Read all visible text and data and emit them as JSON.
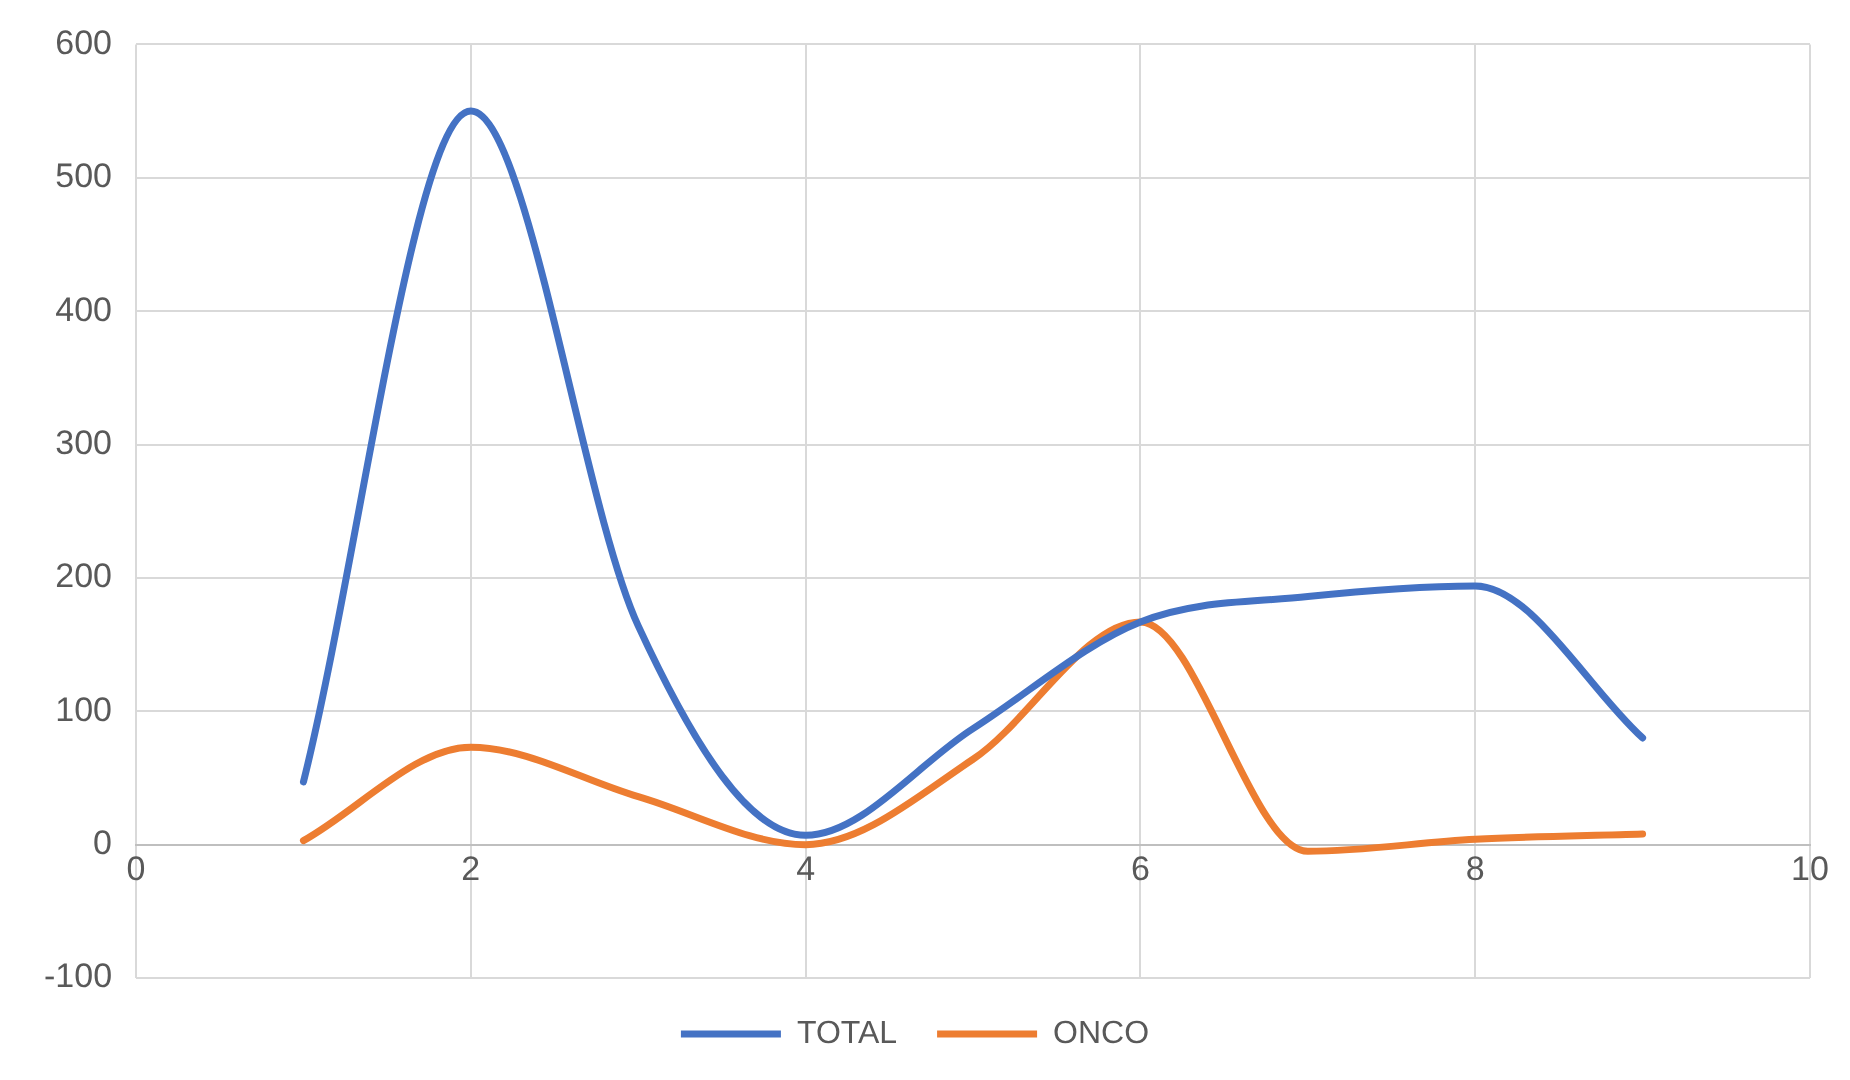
{
  "chart_data": {
    "type": "line",
    "x": [
      1,
      2,
      3,
      4,
      5,
      6,
      7,
      8,
      9
    ],
    "series": [
      {
        "name": "TOTAL",
        "color": "#4472c4",
        "values": [
          47,
          550,
          164,
          7,
          87,
          167,
          186,
          194,
          80
        ]
      },
      {
        "name": "ONCO",
        "color": "#ed7d31",
        "values": [
          3,
          73,
          36,
          0,
          64,
          167,
          -5,
          4,
          8
        ]
      }
    ],
    "xlim": [
      0,
      10
    ],
    "xticks": [
      0,
      2,
      4,
      6,
      8,
      10
    ],
    "ylim": [
      -100,
      600
    ],
    "yticks": [
      -100,
      0,
      100,
      200,
      300,
      400,
      500,
      600
    ],
    "grid": true,
    "legend": "bottom",
    "marker": "none",
    "line_style": "solid"
  }
}
